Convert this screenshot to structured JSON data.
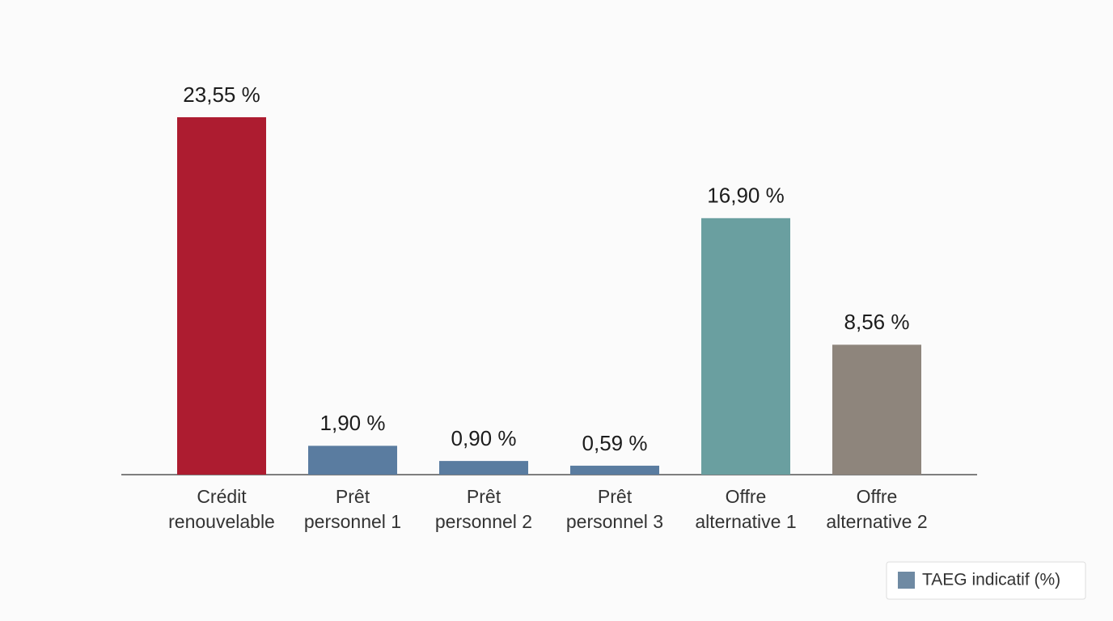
{
  "chart_data": {
    "type": "bar",
    "categories": [
      [
        "Crédit",
        "renouvelable"
      ],
      [
        "Prêt",
        "personnel 1"
      ],
      [
        "Prêt",
        "personnel 2"
      ],
      [
        "Prêt",
        "personnel 3"
      ],
      [
        "Offre",
        "alternative 1"
      ],
      [
        "Offre",
        "alternative 2"
      ]
    ],
    "series": [
      {
        "name": "TAEG indicatif (%)",
        "color": "#6f8aa3",
        "values": [
          23.55,
          1.9,
          0.9,
          0.59,
          16.9,
          8.56
        ],
        "value_labels": [
          "23,55 %",
          "1,90 %",
          "0,90 %",
          "0,59 %",
          "16,90 %",
          "8,56 %"
        ],
        "colors": [
          "#ad1c30",
          "#5a7ca0",
          "#5a7ca0",
          "#5a7ca0",
          "#6a9fa0",
          "#8e857c"
        ]
      }
    ]
  }
}
